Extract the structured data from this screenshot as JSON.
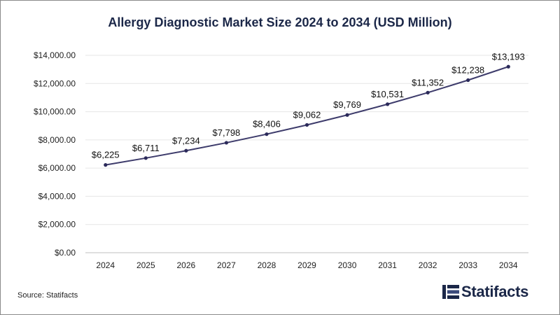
{
  "chart_data": {
    "type": "line",
    "title": "Allergy Diagnostic Market Size 2024 to 2034 (USD Million)",
    "xlabel": "",
    "ylabel": "",
    "categories": [
      "2024",
      "2025",
      "2026",
      "2027",
      "2028",
      "2029",
      "2030",
      "2031",
      "2032",
      "2033",
      "2034"
    ],
    "series": [
      {
        "values": [
          6225,
          6711,
          7234,
          7798,
          8406,
          9062,
          9769,
          10531,
          11352,
          12238,
          13193
        ],
        "labels": [
          "$6,225",
          "$6,711",
          "$7,234",
          "$7,798",
          "$8,406",
          "$9,062",
          "$9,769",
          "$10,531",
          "$11,352",
          "$12,238",
          "$13,193"
        ]
      }
    ],
    "ylim": [
      0,
      14000
    ],
    "yticks": [
      0,
      2000,
      4000,
      6000,
      8000,
      10000,
      12000,
      14000
    ],
    "ytick_labels": [
      "$0.00",
      "$2,000.00",
      "$4,000.00",
      "$6,000.00",
      "$8,000.00",
      "$10,000.00",
      "$12,000.00",
      "$14,000.00"
    ],
    "grid": true,
    "colors": {
      "line": "#3d3b6b",
      "marker": "#2b2a5a",
      "grid": "#e6e6e6",
      "axis": "#bfbfbf"
    }
  },
  "source_text": "Source: Statifacts",
  "logo_text": "Statifacts"
}
